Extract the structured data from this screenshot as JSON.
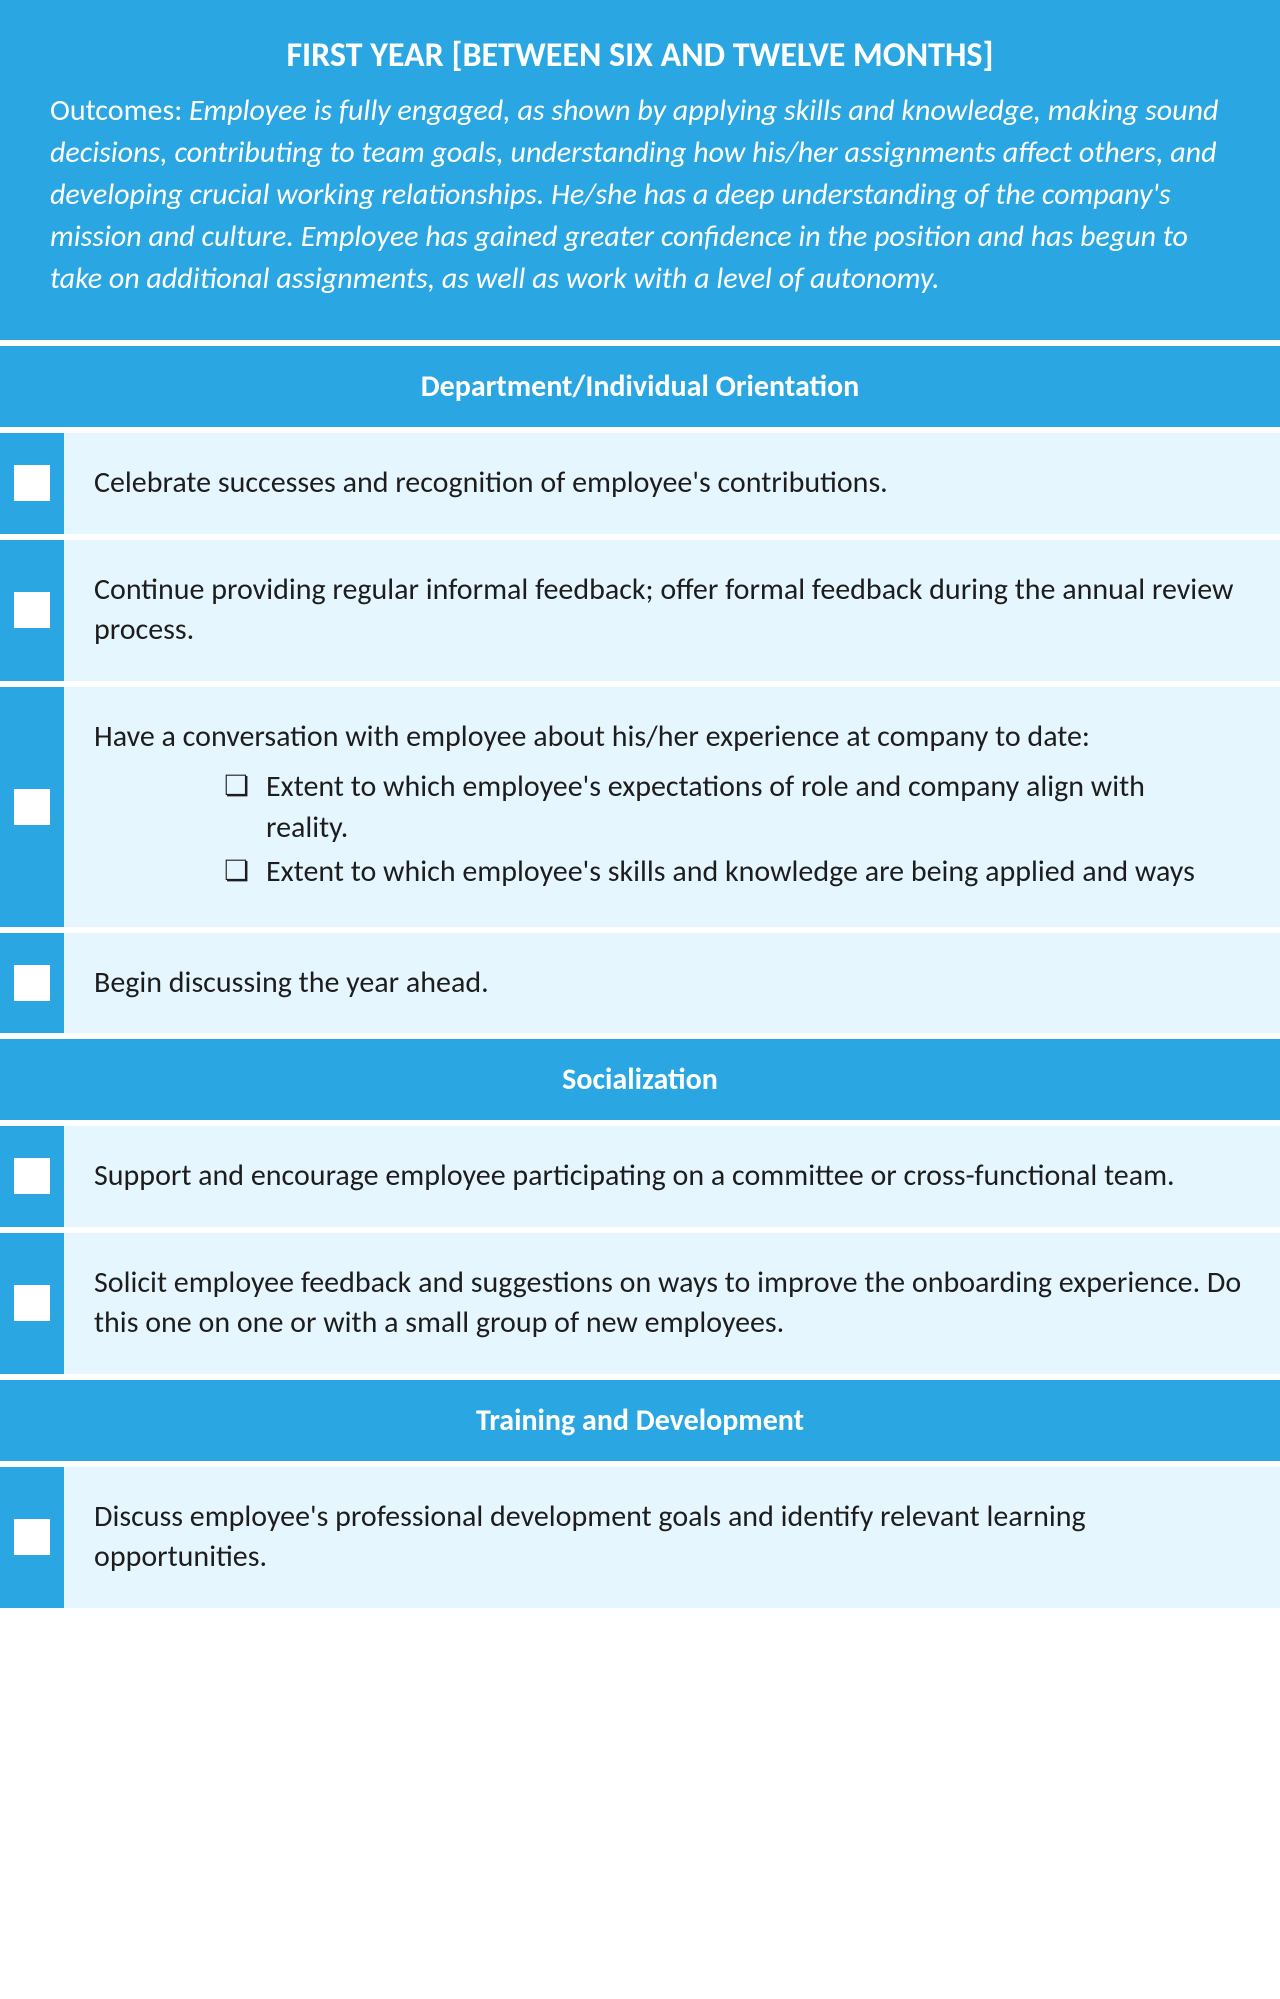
{
  "colors": {
    "primary": "#2aa7e2",
    "light_bg": "#e6f6fe",
    "text": "#1d1d1d",
    "white": "#ffffff"
  },
  "header": {
    "title": "FIRST YEAR [BETWEEN SIX AND TWELVE MONTHS]",
    "outcomes_label": "Outcomes: ",
    "outcomes_body": "Employee is fully engaged, as shown by applying skills and knowledge, making sound decisions, contributing to team goals, understanding how his/her assignments affect others, and developing crucial working relationships. He/she has a deep understanding of the company's mission and culture. Employee has gained greater confidence in the position and has begun to take on additional assignments, as well as work with a level of autonomy."
  },
  "sections": {
    "dept": {
      "title": "Department/Individual Orientation",
      "items": {
        "0": "Celebrate successes and recognition of employee's contributions.",
        "1": "Continue providing regular informal feedback; offer formal feedback during the annual review process.",
        "2": {
          "lead": "Have a conversation with employee about his/her experience at company to date:",
          "sub0": "Extent to which employee's expectations of role and company align with reality.",
          "sub1": "Extent to which employee's skills and knowledge are being applied and ways"
        },
        "3": "Begin discussing the year ahead."
      }
    },
    "social": {
      "title": "Socialization",
      "items": {
        "0": "Support and encourage employee participating on a committee or cross-functional team.",
        "1": "Solicit employee feedback and suggestions on ways to improve the onboarding experience. Do this one on one or with a small group of new employees."
      }
    },
    "training": {
      "title": "Training and Development",
      "items": {
        "0": "Discuss employee's professional development goals and identify relevant learning opportunities."
      }
    }
  }
}
